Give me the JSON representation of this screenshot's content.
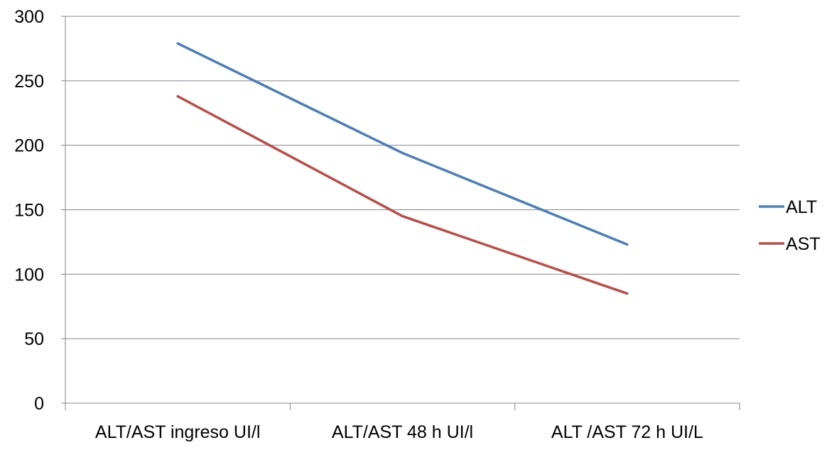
{
  "chart_data": {
    "type": "line",
    "title": "",
    "xlabel": "",
    "ylabel": "",
    "categories": [
      "ALT/AST ingreso UI/l",
      "ALT/AST 48 h UI/l",
      "ALT /AST 72 h UI/L"
    ],
    "series": [
      {
        "name": "ALT",
        "values": [
          279,
          194,
          123
        ],
        "color": "#4a7ebb"
      },
      {
        "name": "AST",
        "values": [
          238,
          145,
          85
        ],
        "color": "#be4b48"
      }
    ],
    "ylim": [
      0,
      300
    ],
    "yticks": [
      0,
      50,
      100,
      150,
      200,
      250,
      300
    ],
    "grid": "horizontal",
    "legend_position": "right"
  }
}
